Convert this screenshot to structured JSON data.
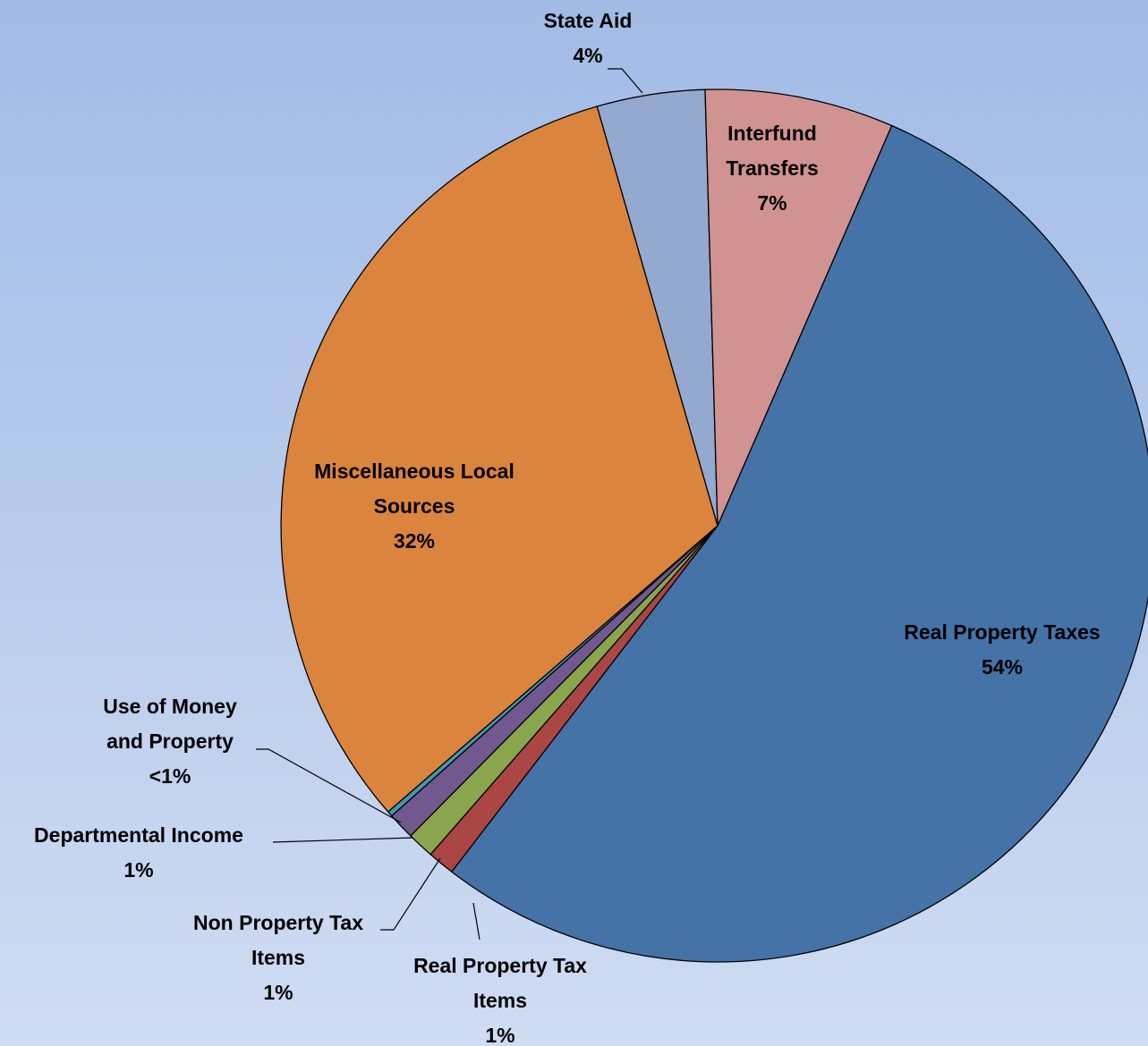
{
  "chart_data": {
    "type": "pie",
    "title": "",
    "slices": [
      {
        "name": "Real Property Taxes",
        "value": 54,
        "label": "54%",
        "color": "#4572a7"
      },
      {
        "name": "Real Property Tax Items",
        "value": 1,
        "label": "1%",
        "color": "#aa4643"
      },
      {
        "name": "Non Property Tax Items",
        "value": 1,
        "label": "1%",
        "color": "#89a54e"
      },
      {
        "name": "Departmental Income",
        "value": 1,
        "label": "1%",
        "color": "#71588f"
      },
      {
        "name": "Use of Money and Property",
        "value": 0.2,
        "label": "<1%",
        "color": "#4198af"
      },
      {
        "name": "Miscellaneous Local Sources",
        "value": 32,
        "label": "32%",
        "color": "#db843d"
      },
      {
        "name": "State Aid",
        "value": 4,
        "label": "4%",
        "color": "#93a9cf"
      },
      {
        "name": "Interfund Transfers",
        "value": 7,
        "label": "7%",
        "color": "#d19392"
      }
    ],
    "labels": [
      {
        "lines": [
          "Real Property Taxes",
          "54%"
        ]
      },
      {
        "lines": [
          "Real Property Tax",
          "Items",
          "1%"
        ]
      },
      {
        "lines": [
          "Non Property Tax",
          "Items",
          "1%"
        ]
      },
      {
        "lines": [
          "Departmental Income",
          "1%"
        ]
      },
      {
        "lines": [
          "Use of Money",
          "and Property",
          "<1%"
        ]
      },
      {
        "lines": [
          "Miscellaneous Local",
          "Sources",
          "32%"
        ]
      },
      {
        "lines": [
          "State Aid",
          "4%"
        ]
      },
      {
        "lines": [
          "Interfund",
          "Transfers",
          "7%"
        ]
      }
    ],
    "legend": "none"
  }
}
